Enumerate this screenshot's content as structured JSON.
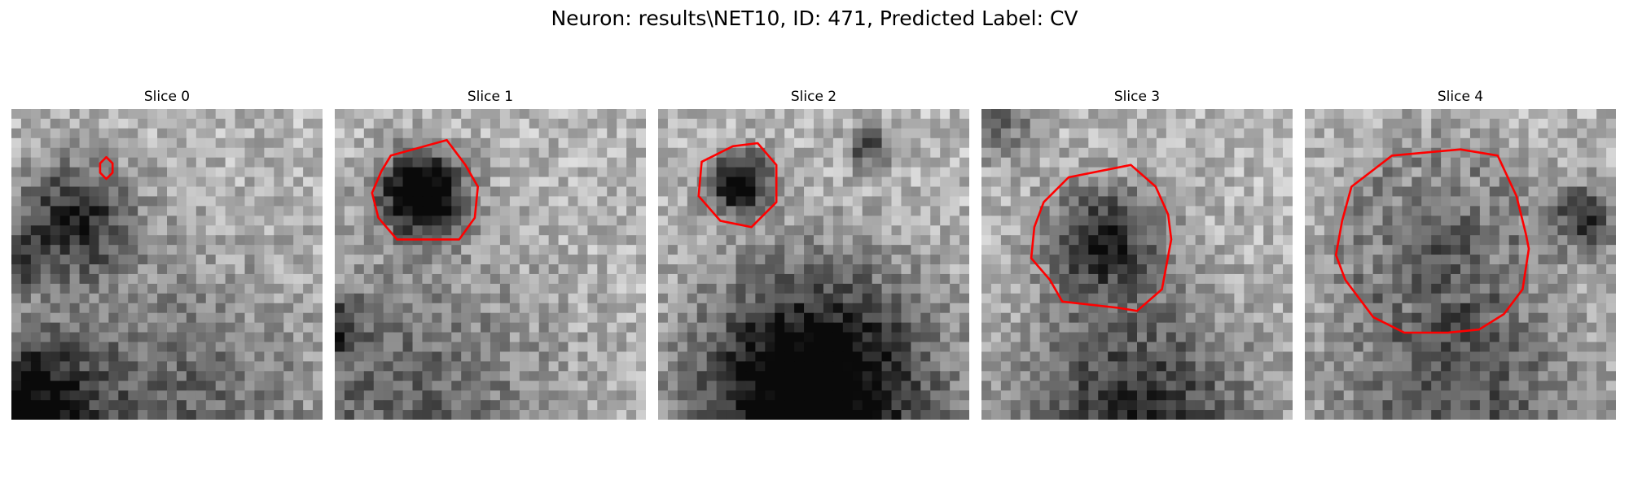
{
  "figure": {
    "title": "Neuron: results\\NET10, ID: 471, Predicted Label: CV"
  },
  "contour_color": "#ff0000",
  "colormap": "gray",
  "slices": [
    {
      "title": "Slice 0",
      "seed": 11,
      "contour": [
        [
          0.305,
          0.155
        ],
        [
          0.325,
          0.175
        ],
        [
          0.325,
          0.205
        ],
        [
          0.305,
          0.225
        ],
        [
          0.285,
          0.205
        ],
        [
          0.285,
          0.175
        ]
      ],
      "dark_blobs": [
        [
          0.2,
          0.35,
          0.22,
          0.55
        ],
        [
          0.05,
          0.95,
          0.25,
          0.6
        ],
        [
          0.5,
          1.02,
          0.6,
          0.35
        ],
        [
          0.02,
          0.5,
          0.1,
          0.4
        ]
      ]
    },
    {
      "title": "Slice 1",
      "seed": 23,
      "contour": [
        [
          0.18,
          0.15
        ],
        [
          0.36,
          0.1
        ],
        [
          0.42,
          0.18
        ],
        [
          0.46,
          0.25
        ],
        [
          0.45,
          0.35
        ],
        [
          0.4,
          0.42
        ],
        [
          0.2,
          0.42
        ],
        [
          0.14,
          0.35
        ],
        [
          0.12,
          0.27
        ],
        [
          0.15,
          0.2
        ]
      ],
      "dark_blobs": [
        [
          0.28,
          0.27,
          0.15,
          0.95
        ],
        [
          0.2,
          1.0,
          0.6,
          0.35
        ],
        [
          0.01,
          0.7,
          0.1,
          0.4
        ]
      ]
    },
    {
      "title": "Slice 2",
      "seed": 37,
      "contour": [
        [
          0.24,
          0.12
        ],
        [
          0.32,
          0.11
        ],
        [
          0.38,
          0.18
        ],
        [
          0.38,
          0.3
        ],
        [
          0.3,
          0.38
        ],
        [
          0.2,
          0.36
        ],
        [
          0.13,
          0.28
        ],
        [
          0.14,
          0.17
        ]
      ],
      "dark_blobs": [
        [
          0.26,
          0.24,
          0.12,
          0.7
        ],
        [
          0.5,
          0.85,
          0.4,
          0.45
        ],
        [
          0.5,
          1.0,
          0.5,
          0.5
        ],
        [
          0.68,
          0.12,
          0.08,
          0.5
        ]
      ]
    },
    {
      "title": "Slice 3",
      "seed": 53,
      "contour": [
        [
          0.28,
          0.22
        ],
        [
          0.48,
          0.18
        ],
        [
          0.56,
          0.25
        ],
        [
          0.6,
          0.34
        ],
        [
          0.61,
          0.42
        ],
        [
          0.58,
          0.58
        ],
        [
          0.5,
          0.65
        ],
        [
          0.44,
          0.64
        ],
        [
          0.26,
          0.62
        ],
        [
          0.22,
          0.55
        ],
        [
          0.16,
          0.48
        ],
        [
          0.17,
          0.38
        ],
        [
          0.2,
          0.3
        ]
      ],
      "dark_blobs": [
        [
          0.39,
          0.42,
          0.21,
          0.55
        ],
        [
          0.5,
          1.0,
          0.45,
          0.55
        ],
        [
          0.05,
          0.05,
          0.15,
          0.3
        ]
      ]
    },
    {
      "title": "Slice 4",
      "seed": 71,
      "contour": [
        [
          0.28,
          0.15
        ],
        [
          0.5,
          0.13
        ],
        [
          0.62,
          0.15
        ],
        [
          0.68,
          0.28
        ],
        [
          0.71,
          0.4
        ],
        [
          0.72,
          0.45
        ],
        [
          0.7,
          0.58
        ],
        [
          0.64,
          0.66
        ],
        [
          0.56,
          0.71
        ],
        [
          0.46,
          0.72
        ],
        [
          0.32,
          0.72
        ],
        [
          0.22,
          0.67
        ],
        [
          0.13,
          0.55
        ],
        [
          0.1,
          0.47
        ],
        [
          0.12,
          0.36
        ],
        [
          0.15,
          0.25
        ]
      ],
      "dark_blobs": [
        [
          0.42,
          0.42,
          0.33,
          0.45
        ],
        [
          0.9,
          0.35,
          0.12,
          0.5
        ],
        [
          0.5,
          1.0,
          0.5,
          0.4
        ]
      ],
      "ring": true
    }
  ]
}
